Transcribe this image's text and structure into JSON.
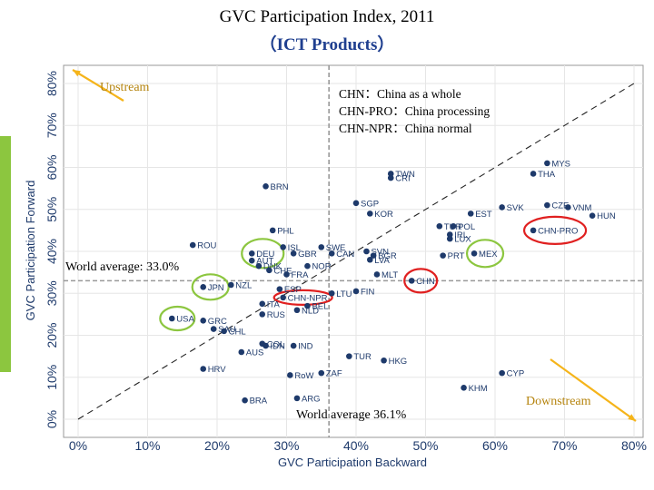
{
  "header": {
    "title_line1": "GVC Participation Index, 2011",
    "title_line2": "（ICT Products）"
  },
  "notes": {
    "upstream": "Upstream",
    "downstream": "Downstream",
    "world_avg_forward": "World average: 33.0%",
    "world_avg_backward": "World average 36.1%",
    "legend": [
      "CHN：China as a whole",
      "CHN-PRO：China processing",
      "CHN-NPR：China normal"
    ]
  },
  "colors": {
    "points": "#1e3a6b",
    "axis_text": "#1e3a6b",
    "arrow": "#f5b41a",
    "highlight_green": "#8cc63f",
    "highlight_red": "#e02020",
    "accent_bar": "#8cc63f"
  },
  "chart_data": {
    "type": "scatter",
    "xlabel": "GVC Participation Backward",
    "ylabel": "GVC Participation Forward",
    "xlim": [
      0,
      0.8
    ],
    "ylim": [
      0,
      0.8
    ],
    "xticks": [
      "0%",
      "10%",
      "20%",
      "30%",
      "40%",
      "50%",
      "60%",
      "70%",
      "80%"
    ],
    "yticks": [
      "0%",
      "10%",
      "20%",
      "30%",
      "40%",
      "50%",
      "60%",
      "70%",
      "80%"
    ],
    "reference_lines": {
      "x": 0.361,
      "y": 0.33,
      "diagonal": true
    },
    "points": [
      {
        "label": "MYS",
        "x": 0.675,
        "y": 0.61
      },
      {
        "label": "THA",
        "x": 0.655,
        "y": 0.585
      },
      {
        "label": "TWN",
        "x": 0.45,
        "y": 0.585
      },
      {
        "label": "CRI",
        "x": 0.45,
        "y": 0.575
      },
      {
        "label": "BRN",
        "x": 0.27,
        "y": 0.555
      },
      {
        "label": "SGP",
        "x": 0.4,
        "y": 0.515
      },
      {
        "label": "KOR",
        "x": 0.42,
        "y": 0.49
      },
      {
        "label": "SVK",
        "x": 0.61,
        "y": 0.505
      },
      {
        "label": "CZE",
        "x": 0.675,
        "y": 0.51
      },
      {
        "label": "VNM",
        "x": 0.705,
        "y": 0.505
      },
      {
        "label": "HUN",
        "x": 0.74,
        "y": 0.485
      },
      {
        "label": "EST",
        "x": 0.565,
        "y": 0.49
      },
      {
        "label": "CHN-PRO",
        "x": 0.655,
        "y": 0.45
      },
      {
        "label": "TUR",
        "x": 0.52,
        "y": 0.46
      },
      {
        "label": "POL",
        "x": 0.54,
        "y": 0.46
      },
      {
        "label": "IRL",
        "x": 0.535,
        "y": 0.44
      },
      {
        "label": "LUX",
        "x": 0.535,
        "y": 0.43
      },
      {
        "label": "MEX",
        "x": 0.57,
        "y": 0.395
      },
      {
        "label": "PRT",
        "x": 0.525,
        "y": 0.39
      },
      {
        "label": "PHL",
        "x": 0.28,
        "y": 0.45
      },
      {
        "label": "ROU",
        "x": 0.165,
        "y": 0.415
      },
      {
        "label": "ISL",
        "x": 0.295,
        "y": 0.41
      },
      {
        "label": "SWE",
        "x": 0.35,
        "y": 0.41
      },
      {
        "label": "DEU",
        "x": 0.25,
        "y": 0.395
      },
      {
        "label": "GBR",
        "x": 0.31,
        "y": 0.395
      },
      {
        "label": "CAN",
        "x": 0.365,
        "y": 0.395
      },
      {
        "label": "SVN",
        "x": 0.415,
        "y": 0.4
      },
      {
        "label": "BGR",
        "x": 0.425,
        "y": 0.39
      },
      {
        "label": "LVA",
        "x": 0.42,
        "y": 0.38
      },
      {
        "label": "AUT",
        "x": 0.25,
        "y": 0.378
      },
      {
        "label": "DNK",
        "x": 0.26,
        "y": 0.365
      },
      {
        "label": "CHE",
        "x": 0.275,
        "y": 0.355
      },
      {
        "label": "NOR",
        "x": 0.33,
        "y": 0.365
      },
      {
        "label": "FRA",
        "x": 0.3,
        "y": 0.345
      },
      {
        "label": "MLT",
        "x": 0.43,
        "y": 0.345
      },
      {
        "label": "CHN",
        "x": 0.48,
        "y": 0.33
      },
      {
        "label": "JPN",
        "x": 0.18,
        "y": 0.315
      },
      {
        "label": "NZL",
        "x": 0.22,
        "y": 0.32
      },
      {
        "label": "ESP",
        "x": 0.29,
        "y": 0.31
      },
      {
        "label": "CHN-NPR",
        "x": 0.295,
        "y": 0.29
      },
      {
        "label": "LTU",
        "x": 0.365,
        "y": 0.3
      },
      {
        "label": "FIN",
        "x": 0.4,
        "y": 0.305
      },
      {
        "label": "ITA",
        "x": 0.265,
        "y": 0.275
      },
      {
        "label": "BEL",
        "x": 0.33,
        "y": 0.27
      },
      {
        "label": "NLD",
        "x": 0.315,
        "y": 0.26
      },
      {
        "label": "RUS",
        "x": 0.265,
        "y": 0.25
      },
      {
        "label": "USA",
        "x": 0.135,
        "y": 0.24
      },
      {
        "label": "GRC",
        "x": 0.18,
        "y": 0.235
      },
      {
        "label": "SAU",
        "x": 0.195,
        "y": 0.215
      },
      {
        "label": "CHL",
        "x": 0.21,
        "y": 0.21
      },
      {
        "label": "COL",
        "x": 0.265,
        "y": 0.18
      },
      {
        "label": "IDN",
        "x": 0.27,
        "y": 0.175
      },
      {
        "label": "IND",
        "x": 0.31,
        "y": 0.175
      },
      {
        "label": "AUS",
        "x": 0.235,
        "y": 0.16
      },
      {
        "label": "TUR",
        "x": 0.39,
        "y": 0.15
      },
      {
        "label": "HKG",
        "x": 0.44,
        "y": 0.14
      },
      {
        "label": "HRV",
        "x": 0.18,
        "y": 0.12
      },
      {
        "label": "ZAF",
        "x": 0.35,
        "y": 0.11
      },
      {
        "label": "RoW",
        "x": 0.305,
        "y": 0.105
      },
      {
        "label": "CYP",
        "x": 0.61,
        "y": 0.11
      },
      {
        "label": "KHM",
        "x": 0.555,
        "y": 0.075
      },
      {
        "label": "BRA",
        "x": 0.24,
        "y": 0.045
      },
      {
        "label": "ARG",
        "x": 0.315,
        "y": 0.05
      }
    ]
  }
}
